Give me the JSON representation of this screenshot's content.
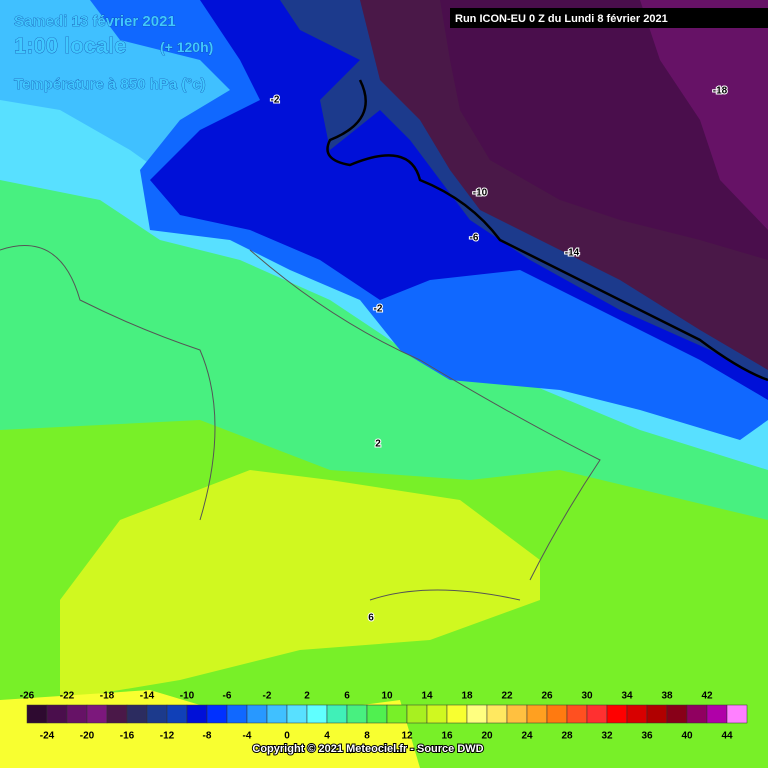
{
  "header": {
    "title": "Samedi 13 février 2021",
    "time": "1:00 locale",
    "lead": "(+ 120h)",
    "variable": "Température à 850 hPa (°c)",
    "run": "Run ICON-EU 0 Z du Lundi 8 février 2021"
  },
  "contour_labels": [
    -2,
    -18,
    -10,
    -6,
    -14,
    -2,
    2,
    6
  ],
  "legend": {
    "top_labels": [
      -26,
      -22,
      -18,
      -14,
      -10,
      -6,
      -2,
      2,
      6,
      10,
      14,
      18,
      22,
      26,
      30,
      34,
      38,
      42
    ],
    "bottom_labels": [
      -24,
      -20,
      -16,
      -12,
      -8,
      -4,
      0,
      4,
      8,
      12,
      16,
      20,
      24,
      28,
      32,
      36,
      40,
      44
    ],
    "colors": [
      "#2e0a30",
      "#4a0e4c",
      "#661266",
      "#7c187c",
      "#4a1848",
      "#2c2c60",
      "#1c3a8c",
      "#1040b8",
      "#0010d8",
      "#0030ff",
      "#1068ff",
      "#2898ff",
      "#40c0ff",
      "#58e0ff",
      "#60ffff",
      "#40f0b8",
      "#48f080",
      "#50f050",
      "#78f028",
      "#a8f020",
      "#d0f820",
      "#f8ff30",
      "#ffff80",
      "#ffe860",
      "#ffc040",
      "#ffa020",
      "#ff7a10",
      "#ff5020",
      "#ff3030",
      "#ff0000",
      "#d80000",
      "#b00000",
      "#880018",
      "#900060",
      "#b000a8",
      "#ff80ff"
    ]
  },
  "footer": {
    "copyright": "Copyright © 2021 Meteociel.fr - Source DWD"
  }
}
